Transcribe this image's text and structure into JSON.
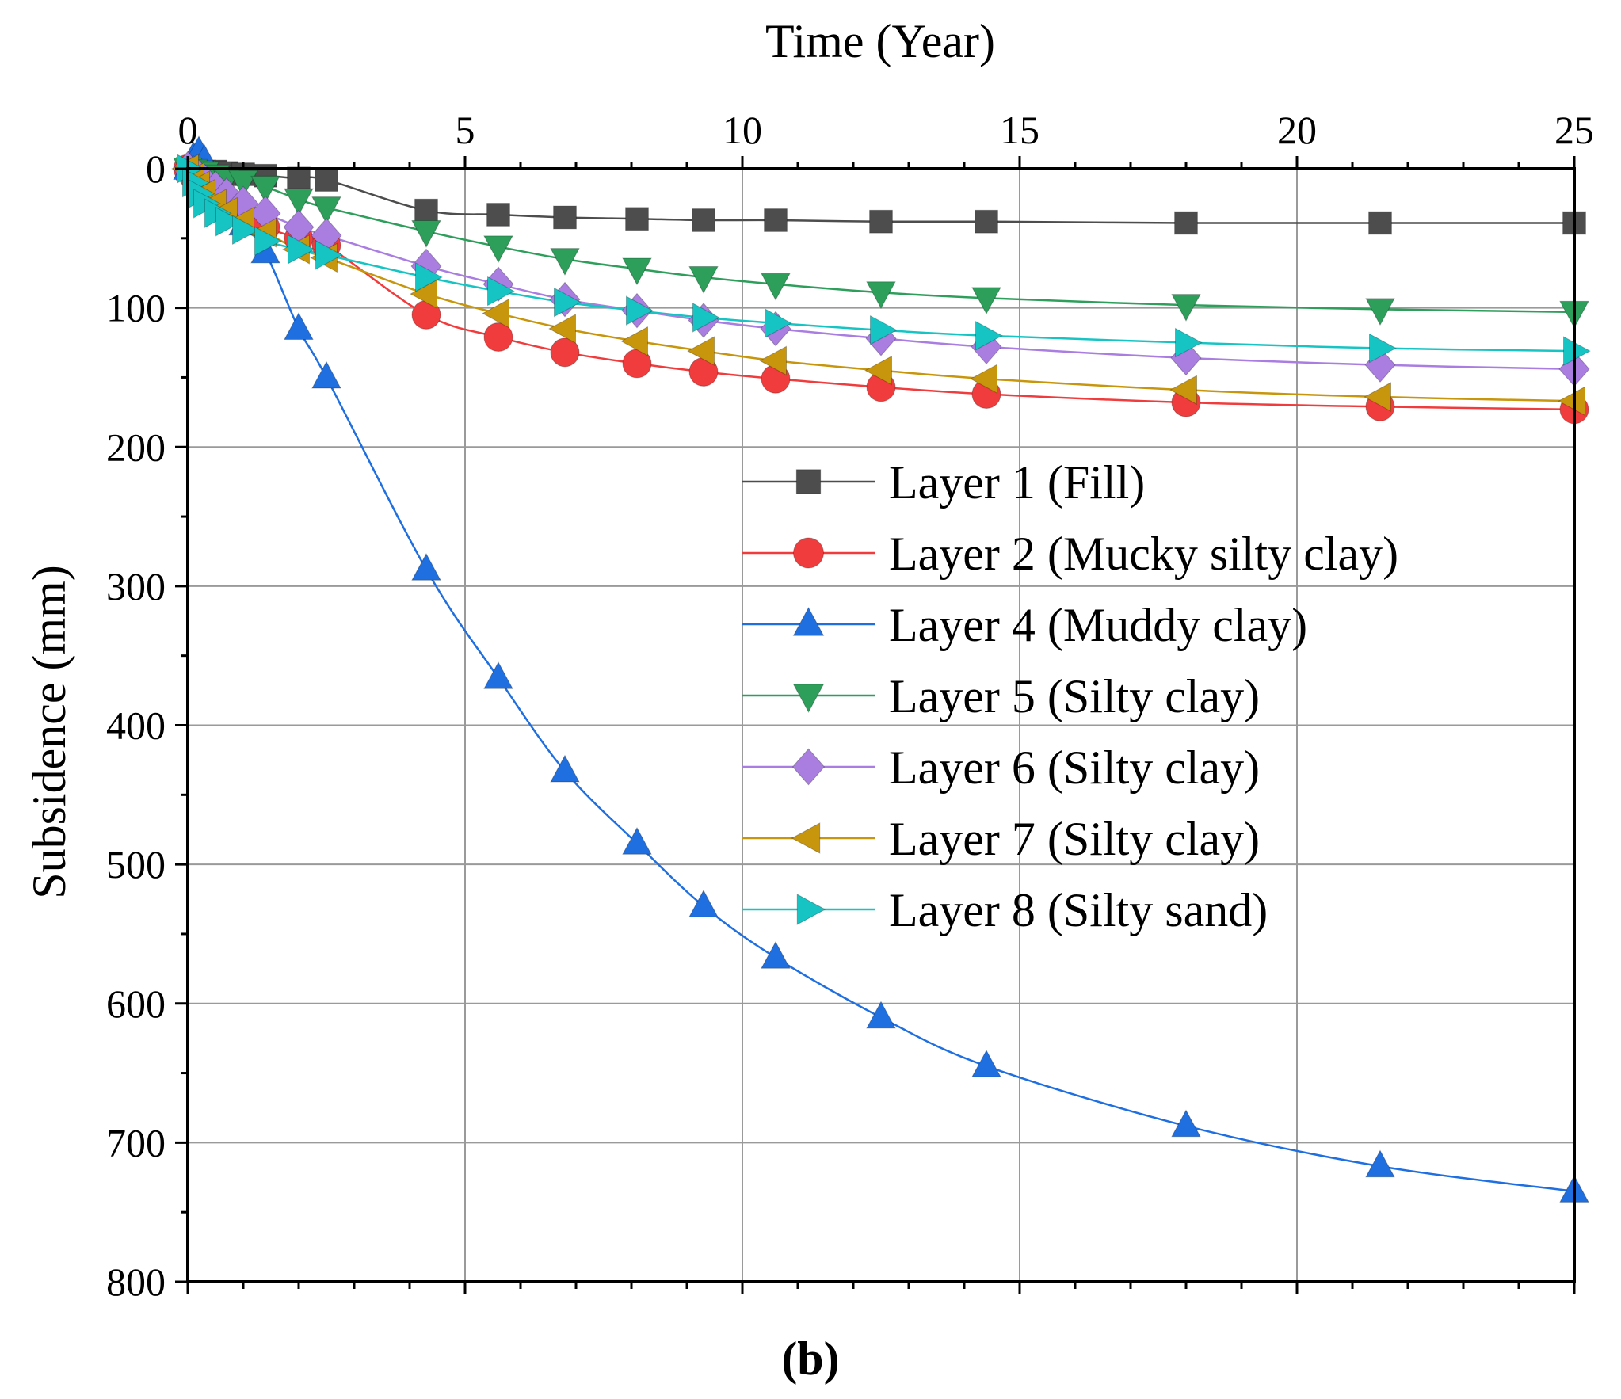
{
  "chart_data": {
    "type": "line",
    "xlabel": "Time (Year)",
    "ylabel": "Subsidence (mm)",
    "xlim": [
      0,
      25
    ],
    "ylim": [
      0,
      800
    ],
    "y_inverted": true,
    "x_axis_position": "top",
    "xticks": [
      0,
      5,
      10,
      15,
      20,
      25
    ],
    "yticks": [
      0,
      100,
      200,
      300,
      400,
      500,
      600,
      700,
      800
    ],
    "grid": true,
    "legend_position": "center-right",
    "panel_label": "(b)",
    "series": [
      {
        "name": "Layer 1 (Fill)",
        "color": "#4d4d4d",
        "marker": "square",
        "x": [
          0,
          0.1,
          0.2,
          0.3,
          0.5,
          0.7,
          1.0,
          1.4,
          2.0,
          2.5,
          4.3,
          5.6,
          6.8,
          8.1,
          9.3,
          10.6,
          12.5,
          14.4,
          18.0,
          21.5,
          25.0
        ],
        "y": [
          0,
          1,
          1,
          2,
          2,
          3,
          4,
          5,
          7,
          8,
          30,
          33,
          35,
          36,
          37,
          37,
          38,
          38,
          39,
          39,
          39
        ]
      },
      {
        "name": "Layer 2 (Mucky silty clay)",
        "color": "#f03c3c",
        "marker": "circle",
        "x": [
          0,
          0.1,
          0.2,
          0.3,
          0.5,
          0.7,
          1.0,
          1.4,
          2.0,
          2.5,
          4.3,
          5.6,
          6.8,
          8.1,
          9.3,
          10.6,
          12.5,
          14.4,
          18.0,
          21.5,
          25.0
        ],
        "y": [
          0,
          5,
          10,
          14,
          20,
          26,
          33,
          42,
          50,
          55,
          105,
          121,
          132,
          140,
          146,
          151,
          157,
          162,
          168,
          171,
          173
        ]
      },
      {
        "name": "Layer 4 (Muddy clay)",
        "color": "#1f6fe0",
        "marker": "triangle-up",
        "x": [
          0,
          0.1,
          0.2,
          0.3,
          0.5,
          0.7,
          1.0,
          1.4,
          2.0,
          2.5,
          4.3,
          5.6,
          6.8,
          8.1,
          9.3,
          10.6,
          12.5,
          14.4,
          18.0,
          21.5,
          25.0
        ],
        "y": [
          0,
          -8,
          -12,
          -6,
          10,
          22,
          40,
          60,
          115,
          150,
          288,
          366,
          433,
          485,
          530,
          567,
          610,
          645,
          688,
          717,
          735
        ]
      },
      {
        "name": "Layer 5 (Silty clay)",
        "color": "#2e9e5b",
        "marker": "triangle-down",
        "x": [
          0,
          0.1,
          0.2,
          0.3,
          0.5,
          0.7,
          1.0,
          1.4,
          2.0,
          2.5,
          4.3,
          5.6,
          6.8,
          8.1,
          9.3,
          10.6,
          12.5,
          14.4,
          18.0,
          21.5,
          25.0
        ],
        "y": [
          0,
          1,
          2,
          3,
          5,
          7,
          9,
          13,
          22,
          28,
          45,
          56,
          65,
          72,
          78,
          83,
          89,
          93,
          98,
          101,
          103
        ]
      },
      {
        "name": "Layer 6 (Silty clay)",
        "color": "#a97ee0",
        "marker": "diamond",
        "x": [
          0,
          0.1,
          0.2,
          0.3,
          0.5,
          0.7,
          1.0,
          1.4,
          2.0,
          2.5,
          4.3,
          5.6,
          6.8,
          8.1,
          9.3,
          10.6,
          12.5,
          14.4,
          18.0,
          21.5,
          25.0
        ],
        "y": [
          0,
          3,
          6,
          9,
          14,
          19,
          25,
          32,
          42,
          48,
          70,
          83,
          94,
          102,
          109,
          115,
          122,
          128,
          136,
          141,
          144
        ]
      },
      {
        "name": "Layer 7 (Silty clay)",
        "color": "#c8960c",
        "marker": "triangle-left",
        "x": [
          0,
          0.1,
          0.2,
          0.3,
          0.5,
          0.7,
          1.0,
          1.4,
          2.0,
          2.5,
          4.3,
          5.6,
          6.8,
          8.1,
          9.3,
          10.6,
          12.5,
          14.4,
          18.0,
          21.5,
          25.0
        ],
        "y": [
          0,
          6,
          12,
          18,
          25,
          31,
          38,
          46,
          58,
          64,
          90,
          104,
          115,
          124,
          131,
          138,
          145,
          151,
          159,
          164,
          167
        ]
      },
      {
        "name": "Layer 8 (Silty sand)",
        "color": "#17c4c4",
        "marker": "triangle-right",
        "x": [
          0,
          0.1,
          0.2,
          0.3,
          0.5,
          0.7,
          1.0,
          1.4,
          2.0,
          2.5,
          4.3,
          5.6,
          6.8,
          8.1,
          9.3,
          10.6,
          12.5,
          14.4,
          18.0,
          21.5,
          25.0
        ],
        "y": [
          0,
          10,
          18,
          25,
          32,
          38,
          44,
          52,
          58,
          62,
          78,
          88,
          96,
          102,
          107,
          111,
          116,
          120,
          125,
          129,
          131
        ]
      }
    ]
  }
}
